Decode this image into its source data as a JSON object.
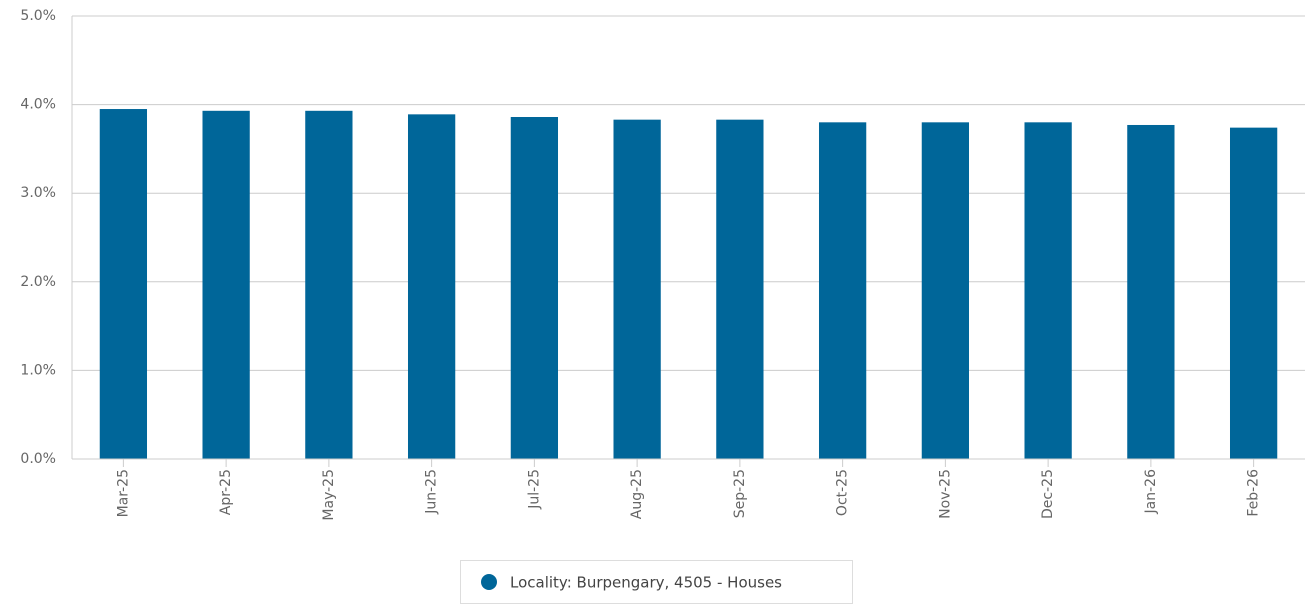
{
  "chart_data": {
    "type": "bar",
    "categories": [
      "Mar-25",
      "Apr-25",
      "May-25",
      "Jun-25",
      "Jul-25",
      "Aug-25",
      "Sep-25",
      "Oct-25",
      "Nov-25",
      "Dec-25",
      "Jan-26",
      "Feb-26"
    ],
    "series": [
      {
        "name": "Locality: Burpengary, 4505 - Houses",
        "color": "#006699",
        "values": [
          3.95,
          3.93,
          3.93,
          3.89,
          3.86,
          3.83,
          3.83,
          3.8,
          3.8,
          3.8,
          3.77,
          3.74
        ]
      }
    ],
    "ylim": [
      0,
      5
    ],
    "yticks": [
      {
        "value": 0,
        "label": "0.0%"
      },
      {
        "value": 1,
        "label": "1.0%"
      },
      {
        "value": 2,
        "label": "2.0%"
      },
      {
        "value": 3,
        "label": "3.0%"
      },
      {
        "value": 4,
        "label": "4.0%"
      },
      {
        "value": 5,
        "label": "5.0%"
      }
    ],
    "grid": true
  }
}
